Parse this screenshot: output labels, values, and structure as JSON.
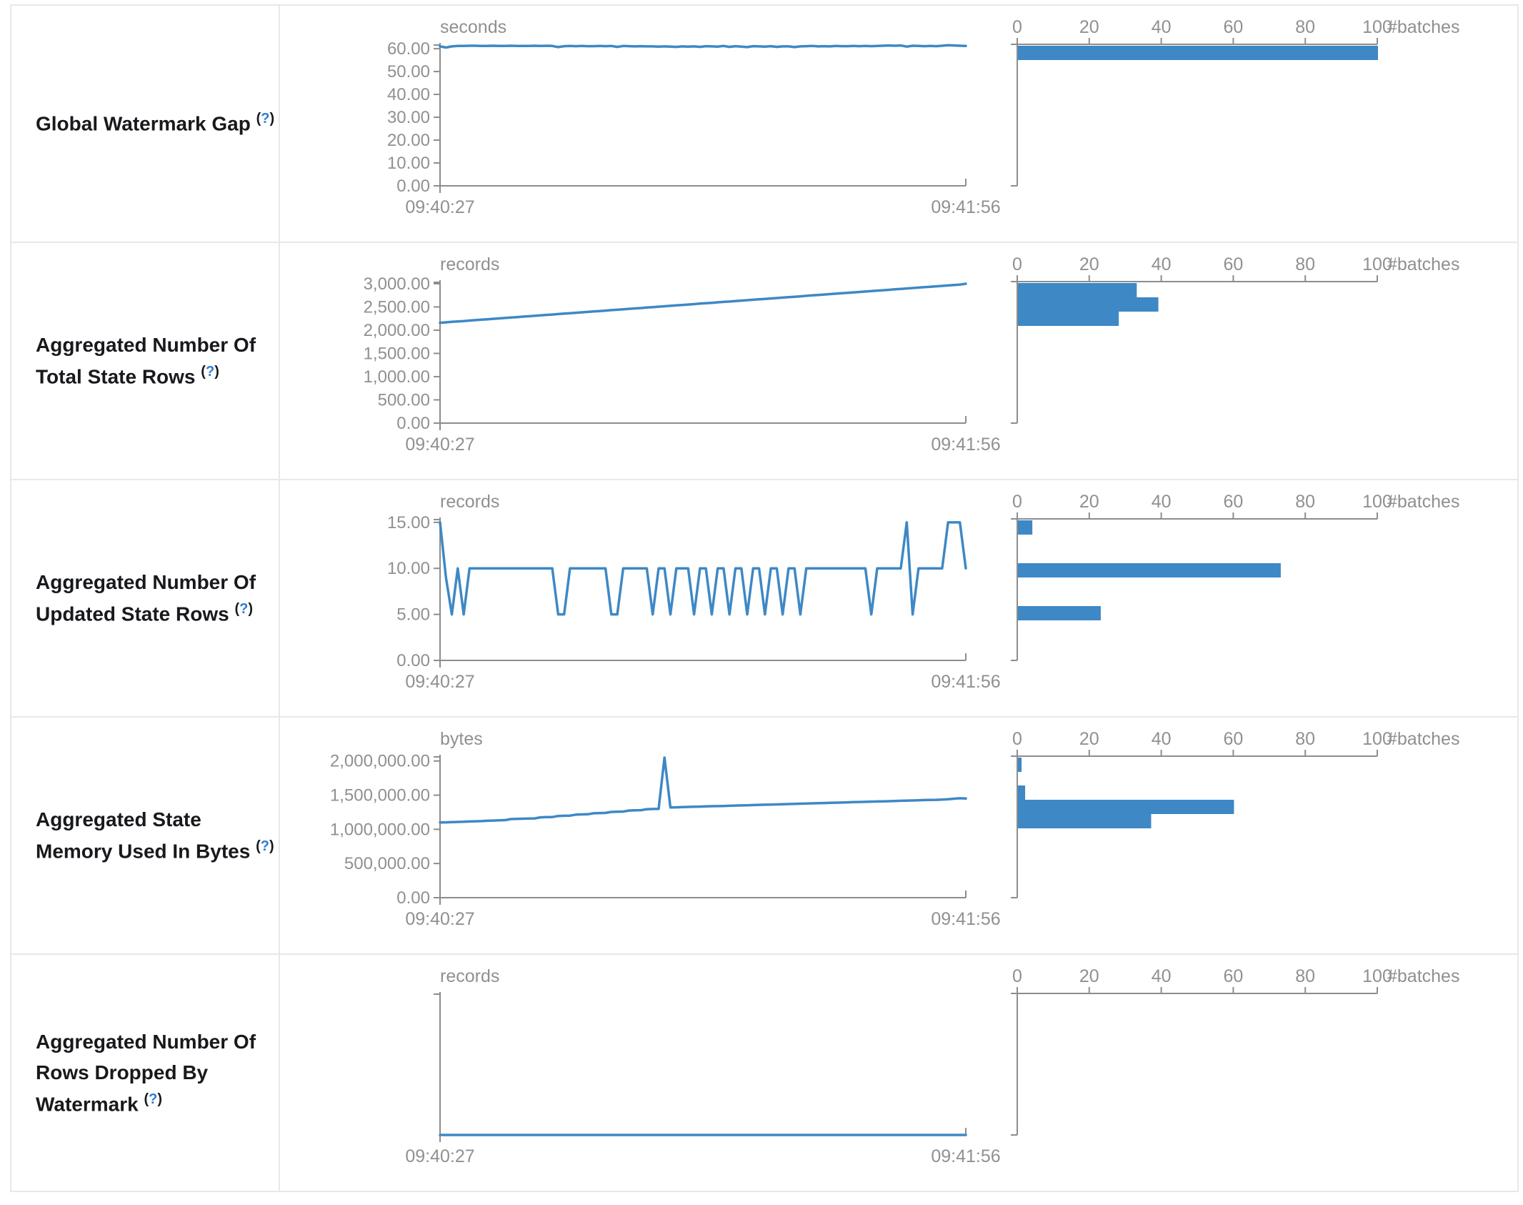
{
  "theme": {
    "accent_blue": "#3e88c5",
    "axis_gray": "#8d8d8d",
    "text_gray": "#909090",
    "title_color": "#17191c",
    "help_blue": "#2b7bd6",
    "border_gray": "#e6e8eb"
  },
  "timeline_axis": {
    "x_start": "09:40:27",
    "x_end": "09:41:56"
  },
  "histogram_axis": {
    "tick_labels": [
      "0",
      "20",
      "40",
      "60",
      "80",
      "100"
    ],
    "tick_values": [
      0,
      20,
      40,
      60,
      80,
      100
    ],
    "label": "#batches"
  },
  "chart_data": [
    {
      "title": "Global Watermark Gap",
      "help": {
        "open": "(",
        "q": "?",
        "close": ")"
      },
      "timeline": {
        "type": "line",
        "unit": "seconds",
        "x_start": "09:40:27",
        "x_end": "09:41:56",
        "ytick_labels": [
          "60.00",
          "50.00",
          "40.00",
          "30.00",
          "20.00",
          "10.00",
          "0.00"
        ],
        "ytick_values": [
          60,
          50,
          40,
          30,
          20,
          10,
          0
        ],
        "ymax": 61.6,
        "values": [
          61.0,
          60.5,
          61.0,
          61.2,
          61.2,
          61.3,
          61.3,
          61.2,
          61.2,
          61.3,
          61.2,
          61.2,
          61.3,
          61.2,
          61.2,
          61.2,
          61.3,
          61.2,
          61.3,
          61.2,
          60.7,
          61.1,
          61.2,
          61.1,
          61.2,
          61.1,
          61.1,
          61.2,
          61.1,
          61.2,
          60.8,
          61.2,
          61.1,
          61.0,
          61.1,
          61.0,
          61.0,
          60.9,
          61.0,
          60.9,
          60.8,
          61.0,
          60.9,
          61.0,
          60.8,
          61.1,
          61.0,
          60.9,
          61.2,
          60.8,
          61.1,
          60.9,
          60.7,
          61.1,
          61.0,
          60.9,
          61.1,
          60.8,
          61.0,
          61.0,
          60.7,
          61.0,
          61.1,
          61.2,
          61.0,
          61.1,
          61.0,
          61.2,
          61.1,
          61.1,
          61.2,
          61.1,
          61.2,
          61.1,
          61.2,
          61.3,
          61.4,
          61.3,
          61.4,
          60.9,
          61.3,
          61.2,
          61.1,
          61.2,
          61.1,
          61.3,
          61.5,
          61.4,
          61.3,
          61.2
        ]
      },
      "histogram": {
        "type": "bar",
        "xlabel": "#batches",
        "xticks": [
          0,
          20,
          40,
          60,
          80,
          100
        ],
        "bars": [
          {
            "count": 100,
            "top": 56
          }
        ]
      }
    },
    {
      "title": "Aggregated Number Of Total State Rows",
      "help": {
        "open": "(",
        "q": "?",
        "close": ")"
      },
      "timeline": {
        "type": "line",
        "unit": "records",
        "x_start": "09:40:27",
        "x_end": "09:41:56",
        "ytick_labels": [
          "3,000.00",
          "2,500.00",
          "2,000.00",
          "1,500.00",
          "1,000.00",
          "500.00",
          "0.00"
        ],
        "ytick_values": [
          3000,
          2500,
          2000,
          1500,
          1000,
          500,
          0
        ],
        "ymax": 3030,
        "values": [
          2160,
          2169,
          2179,
          2188,
          2197,
          2207,
          2216,
          2225,
          2235,
          2244,
          2253,
          2263,
          2272,
          2281,
          2291,
          2300,
          2309,
          2319,
          2328,
          2337,
          2347,
          2356,
          2365,
          2375,
          2384,
          2393,
          2403,
          2412,
          2421,
          2431,
          2440,
          2449,
          2459,
          2468,
          2477,
          2487,
          2496,
          2505,
          2515,
          2524,
          2533,
          2543,
          2552,
          2561,
          2571,
          2580,
          2589,
          2599,
          2608,
          2617,
          2627,
          2636,
          2645,
          2655,
          2664,
          2673,
          2683,
          2692,
          2701,
          2711,
          2720,
          2729,
          2739,
          2748,
          2757,
          2767,
          2776,
          2785,
          2795,
          2804,
          2813,
          2823,
          2832,
          2841,
          2851,
          2860,
          2869,
          2879,
          2888,
          2897,
          2907,
          2916,
          2925,
          2935,
          2944,
          2953,
          2963,
          2972,
          2981,
          3000
        ]
      },
      "histogram": {
        "type": "bar",
        "xlabel": "#batches",
        "xticks": [
          0,
          20,
          40,
          60,
          80,
          100
        ],
        "bars": [
          {
            "count": 33,
            "top": 56
          },
          {
            "count": 39,
            "top": 76
          },
          {
            "count": 28,
            "top": 96
          }
        ]
      }
    },
    {
      "title": "Aggregated Number Of Updated State Rows",
      "help": {
        "open": "(",
        "q": "?",
        "close": ")"
      },
      "timeline": {
        "type": "line",
        "unit": "records",
        "x_start": "09:40:27",
        "x_end": "09:41:56",
        "ytick_labels": [
          "15.00",
          "10.00",
          "5.00",
          "0.00"
        ],
        "ytick_values": [
          15,
          10,
          5,
          0
        ],
        "ymax": 15.3,
        "values": [
          15,
          9,
          5,
          10,
          5,
          10,
          10,
          10,
          10,
          10,
          10,
          10,
          10,
          10,
          10,
          10,
          10,
          10,
          10,
          10,
          5,
          5,
          10,
          10,
          10,
          10,
          10,
          10,
          10,
          5,
          5,
          10,
          10,
          10,
          10,
          10,
          5,
          10,
          10,
          5,
          10,
          10,
          10,
          5,
          10,
          10,
          5,
          10,
          10,
          5,
          10,
          10,
          5,
          10,
          10,
          5,
          10,
          10,
          5,
          10,
          10,
          5,
          10,
          10,
          10,
          10,
          10,
          10,
          10,
          10,
          10,
          10,
          10,
          5,
          10,
          10,
          10,
          10,
          10,
          15,
          5,
          10,
          10,
          10,
          10,
          10,
          15,
          15,
          15,
          10
        ]
      },
      "histogram": {
        "type": "bar",
        "xlabel": "#batches",
        "xticks": [
          0,
          20,
          40,
          60,
          80,
          100
        ],
        "bars": [
          {
            "count": 4,
            "top": 56
          },
          {
            "count": 73,
            "top": 116
          },
          {
            "count": 23,
            "top": 176
          }
        ]
      }
    },
    {
      "title": "Aggregated State Memory Used In Bytes",
      "help": {
        "open": "(",
        "q": "?",
        "close": ")"
      },
      "timeline": {
        "type": "line",
        "unit": "bytes",
        "x_start": "09:40:27",
        "x_end": "09:41:56",
        "ytick_labels": [
          "2,000,000.00",
          "1,500,000.00",
          "1,000,000.00",
          "500,000.00",
          "0.00"
        ],
        "ytick_values": [
          2000000,
          1500000,
          1000000,
          500000,
          0
        ],
        "ymax": 2060000,
        "values": [
          1100000,
          1102000,
          1105000,
          1108000,
          1110000,
          1115000,
          1118000,
          1120000,
          1125000,
          1128000,
          1132000,
          1135000,
          1150000,
          1152000,
          1155000,
          1158000,
          1160000,
          1175000,
          1178000,
          1180000,
          1195000,
          1198000,
          1200000,
          1215000,
          1218000,
          1220000,
          1235000,
          1238000,
          1240000,
          1255000,
          1258000,
          1260000,
          1275000,
          1278000,
          1280000,
          1295000,
          1298000,
          1300000,
          2050000,
          1320000,
          1322000,
          1325000,
          1328000,
          1330000,
          1332000,
          1335000,
          1338000,
          1340000,
          1342000,
          1345000,
          1348000,
          1350000,
          1352000,
          1355000,
          1358000,
          1360000,
          1362000,
          1365000,
          1368000,
          1370000,
          1372000,
          1375000,
          1378000,
          1380000,
          1382000,
          1385000,
          1388000,
          1390000,
          1392000,
          1395000,
          1398000,
          1400000,
          1402000,
          1405000,
          1408000,
          1410000,
          1412000,
          1415000,
          1418000,
          1420000,
          1422000,
          1425000,
          1428000,
          1430000,
          1432000,
          1435000,
          1440000,
          1448000,
          1455000,
          1450000
        ]
      },
      "histogram": {
        "type": "bar",
        "xlabel": "#batches",
        "xticks": [
          0,
          20,
          40,
          60,
          80,
          100
        ],
        "bars": [
          {
            "count": 1,
            "top": 56
          },
          {
            "count": 2,
            "top": 95
          },
          {
            "count": 60,
            "top": 115
          },
          {
            "count": 37,
            "top": 135
          }
        ]
      }
    },
    {
      "title": "Aggregated Number Of Rows Dropped By Watermark",
      "help": {
        "open": "(",
        "q": "?",
        "close": ")"
      },
      "timeline": {
        "type": "line",
        "unit": "records",
        "x_start": "09:40:27",
        "x_end": "09:41:56",
        "ytick_labels": [],
        "ytick_values": [],
        "ymax": 1,
        "values": [
          0,
          0,
          0,
          0,
          0,
          0,
          0,
          0,
          0,
          0,
          0,
          0,
          0,
          0,
          0,
          0,
          0,
          0,
          0,
          0,
          0,
          0,
          0,
          0,
          0,
          0,
          0,
          0,
          0,
          0,
          0,
          0,
          0,
          0,
          0,
          0,
          0,
          0,
          0,
          0,
          0,
          0,
          0,
          0,
          0,
          0,
          0,
          0,
          0,
          0,
          0,
          0,
          0,
          0,
          0,
          0,
          0,
          0,
          0,
          0,
          0,
          0,
          0,
          0,
          0,
          0,
          0,
          0,
          0,
          0,
          0,
          0,
          0,
          0,
          0,
          0,
          0,
          0,
          0,
          0,
          0,
          0,
          0,
          0,
          0,
          0,
          0,
          0,
          0,
          0
        ]
      },
      "histogram": {
        "type": "bar",
        "xlabel": "#batches",
        "xticks": [
          0,
          20,
          40,
          60,
          80,
          100
        ],
        "bars": []
      }
    }
  ]
}
